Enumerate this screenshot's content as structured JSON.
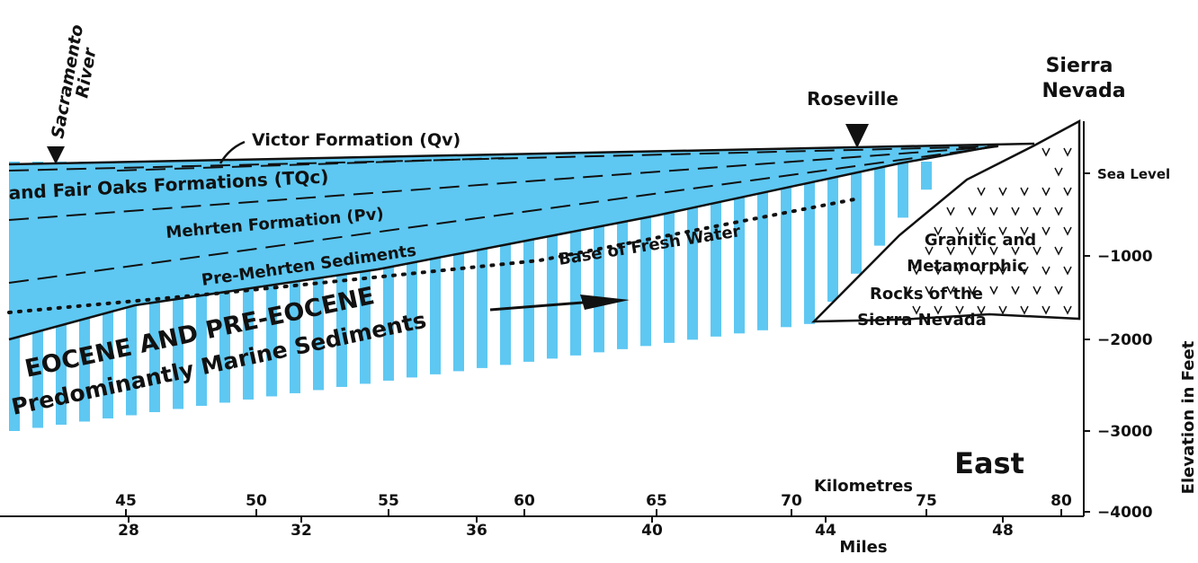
{
  "labels": {
    "river": [
      "Sacramento",
      "River"
    ],
    "victor": "Victor Formation (Qv)",
    "tqc": "and Fair Oaks Formations (TQc)",
    "mehrten": "Mehrten Formation (Pv)",
    "pre_mehrten": "Pre-Mehrten Sediments",
    "fresh_water": "Base of Fresh Water",
    "eocene": "EOCENE AND PRE-EOCENE",
    "marine": "Predominantly Marine Sediments",
    "roseville": "Roseville",
    "sierra": [
      "Sierra",
      "Nevada"
    ],
    "granitic": [
      "Granitic and",
      "Metamorphic",
      "Rocks of the",
      "Sierra Nevada"
    ],
    "east": "East"
  },
  "axes": {
    "km_title": "Kilometres",
    "km_ticks": [
      "45",
      "50",
      "55",
      "60",
      "65",
      "70",
      "75",
      "80"
    ],
    "mi_title": "Miles",
    "mi_ticks": [
      "28",
      "32",
      "36",
      "40",
      "44",
      "48"
    ],
    "elev_title": "Elevation in Feet",
    "elev_ticks": [
      "Sea Level",
      "−1000",
      "−2000",
      "−3000",
      "−4000"
    ]
  }
}
